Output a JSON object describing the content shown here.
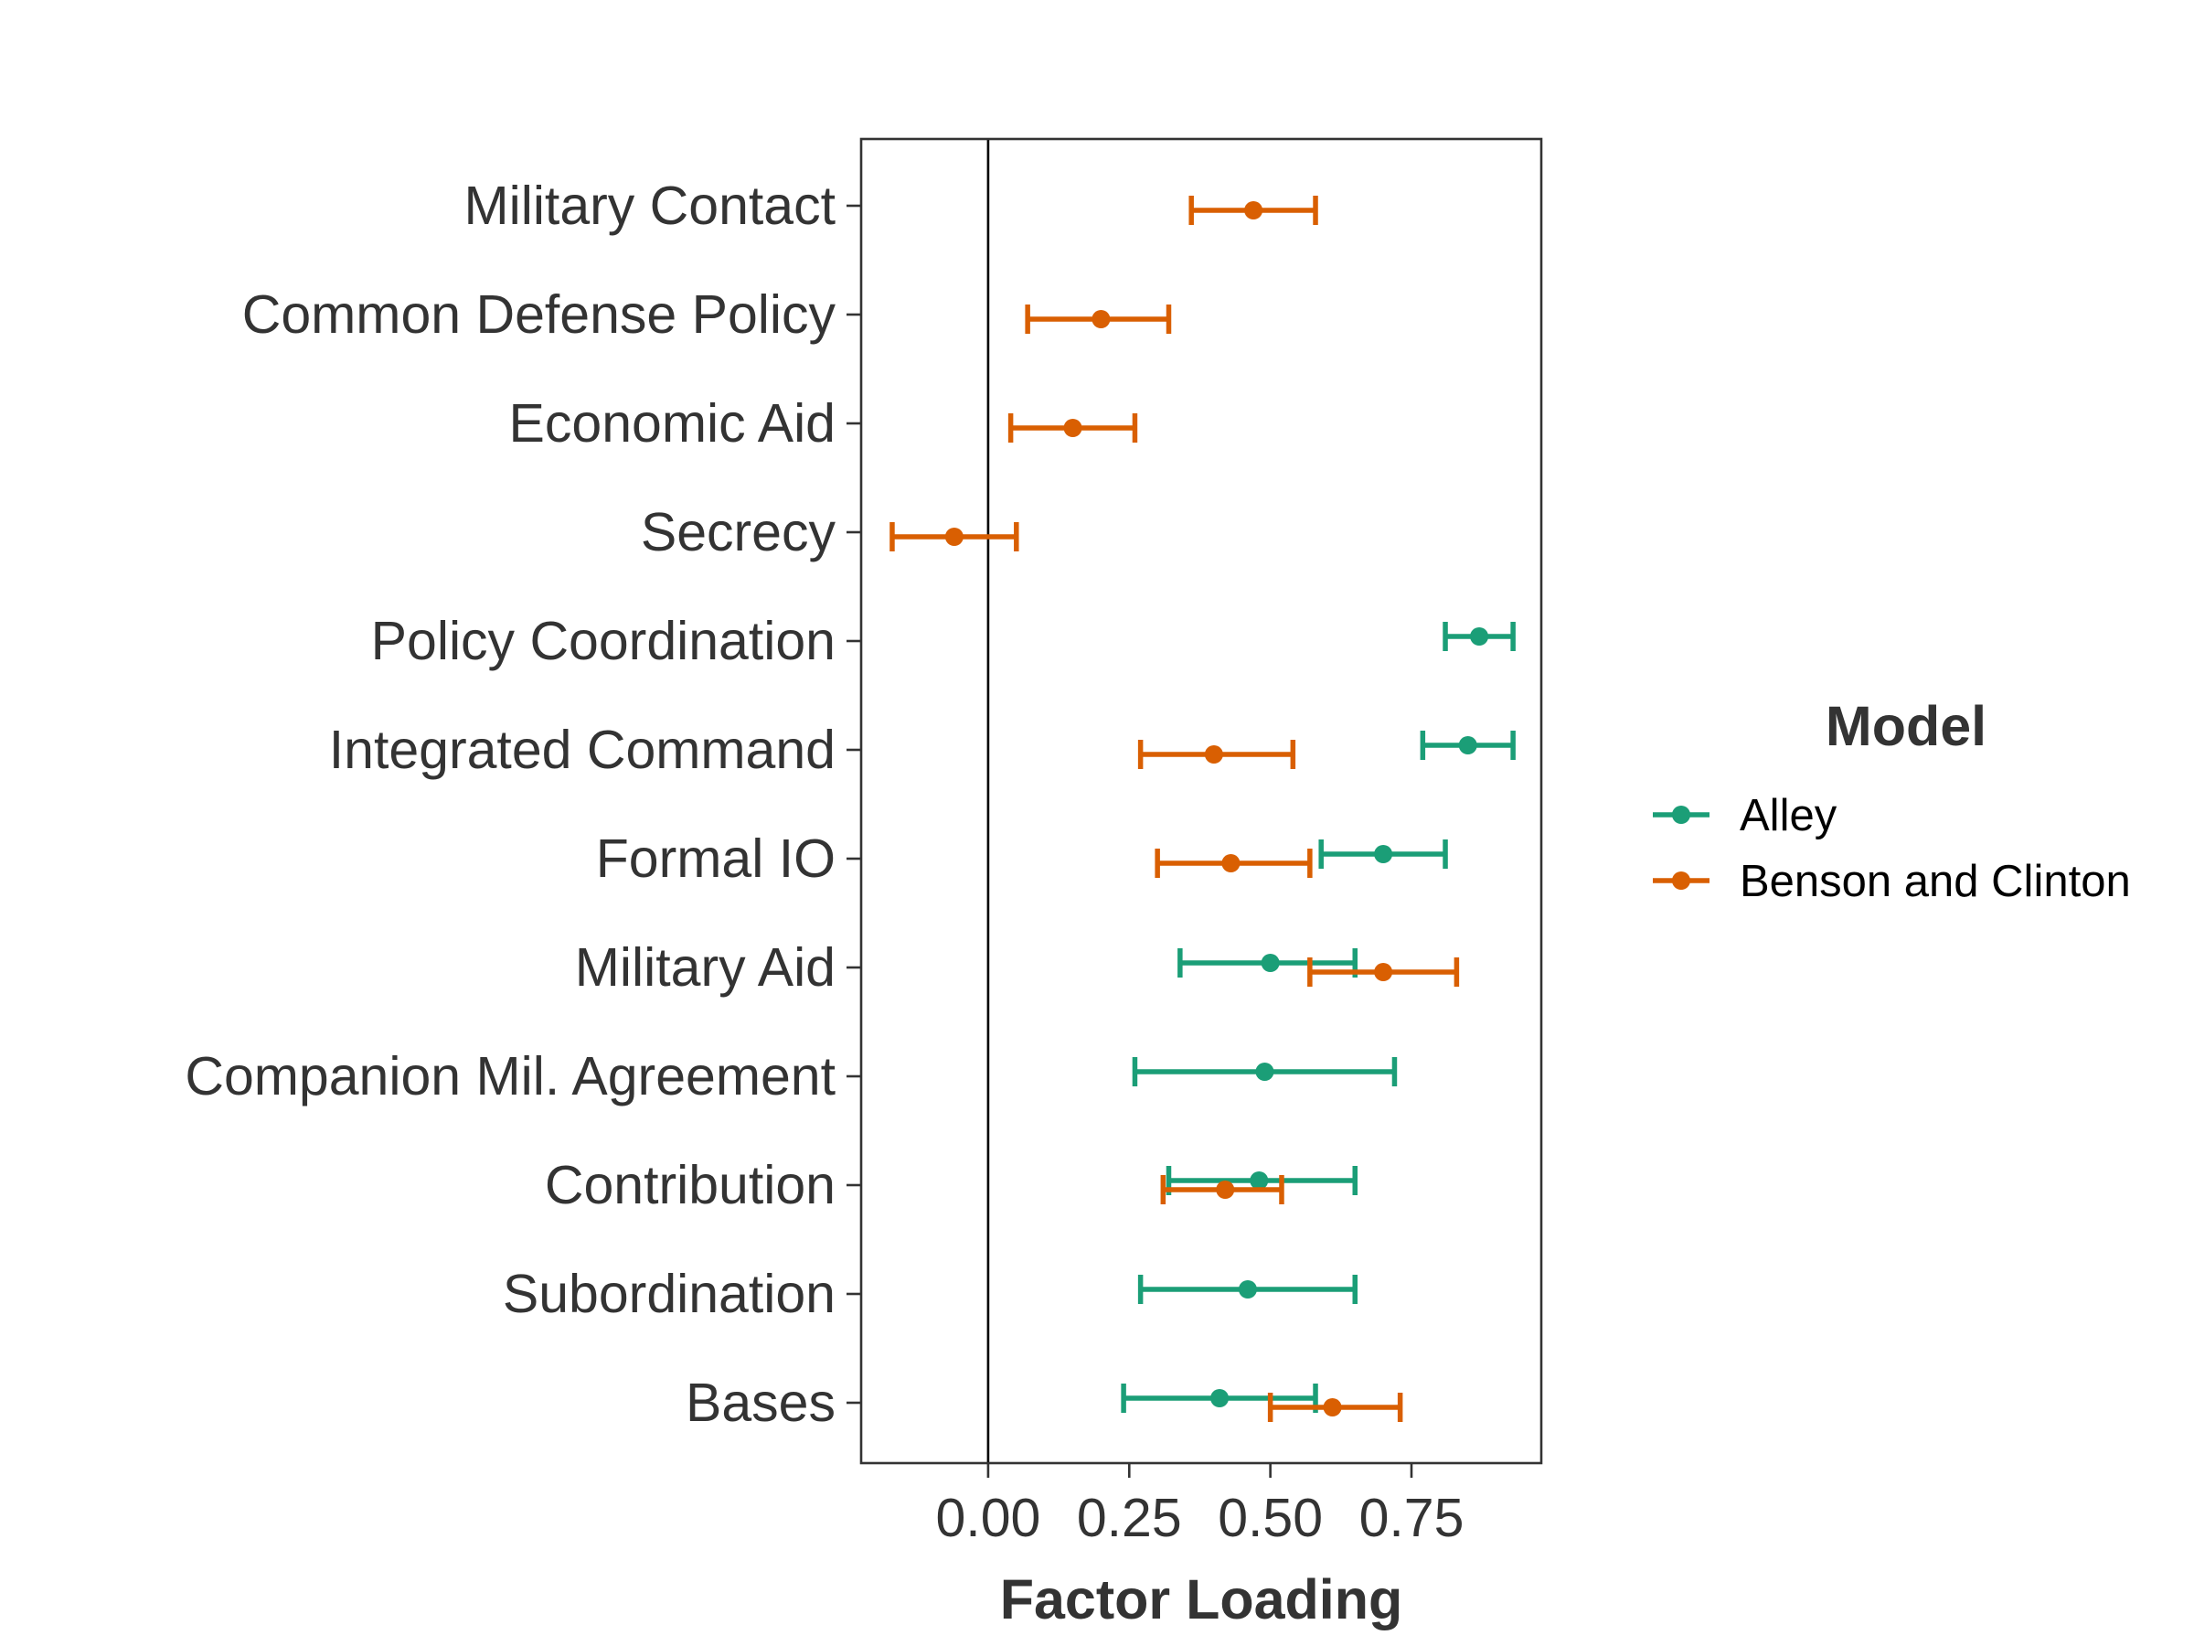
{
  "chart_data": {
    "type": "dot-errorbar",
    "xlabel": "Factor Loading",
    "ylabel": "",
    "xlim": [
      -0.225,
      0.98
    ],
    "x_ticks": [
      0.0,
      0.25,
      0.5,
      0.75
    ],
    "x_tick_labels": [
      "0.00",
      "0.25",
      "0.50",
      "0.75"
    ],
    "reference_line_x": 0,
    "grid": false,
    "legend": {
      "title": "Model",
      "position": "right"
    },
    "categories": [
      "Military Contact",
      "Common Defense Policy",
      "Economic Aid",
      "Secrecy",
      "Policy Coordination",
      "Integrated Command",
      "Formal IO",
      "Military Aid",
      "Companion Mil. Agreement",
      "Contribution",
      "Subordination",
      "Bases"
    ],
    "series": [
      {
        "name": "Alley",
        "color": "#1b9e77",
        "points": [
          {
            "category": "Policy Coordination",
            "estimate": 0.87,
            "lower": 0.81,
            "upper": 0.93
          },
          {
            "category": "Integrated Command",
            "estimate": 0.85,
            "lower": 0.77,
            "upper": 0.93
          },
          {
            "category": "Formal IO",
            "estimate": 0.7,
            "lower": 0.59,
            "upper": 0.81
          },
          {
            "category": "Military Aid",
            "estimate": 0.5,
            "lower": 0.34,
            "upper": 0.65
          },
          {
            "category": "Companion Mil. Agreement",
            "estimate": 0.49,
            "lower": 0.26,
            "upper": 0.72
          },
          {
            "category": "Contribution",
            "estimate": 0.48,
            "lower": 0.32,
            "upper": 0.65
          },
          {
            "category": "Subordination",
            "estimate": 0.46,
            "lower": 0.27,
            "upper": 0.65
          },
          {
            "category": "Bases",
            "estimate": 0.41,
            "lower": 0.24,
            "upper": 0.58
          }
        ]
      },
      {
        "name": "Benson and Clinton",
        "color": "#d95f02",
        "points": [
          {
            "category": "Military Contact",
            "estimate": 0.47,
            "lower": 0.36,
            "upper": 0.58
          },
          {
            "category": "Common Defense Policy",
            "estimate": 0.2,
            "lower": 0.07,
            "upper": 0.32
          },
          {
            "category": "Economic Aid",
            "estimate": 0.15,
            "lower": 0.04,
            "upper": 0.26
          },
          {
            "category": "Secrecy",
            "estimate": -0.06,
            "lower": -0.17,
            "upper": 0.05
          },
          {
            "category": "Integrated Command",
            "estimate": 0.4,
            "lower": 0.27,
            "upper": 0.54
          },
          {
            "category": "Formal IO",
            "estimate": 0.43,
            "lower": 0.3,
            "upper": 0.57
          },
          {
            "category": "Military Aid",
            "estimate": 0.7,
            "lower": 0.57,
            "upper": 0.83
          },
          {
            "category": "Contribution",
            "estimate": 0.42,
            "lower": 0.31,
            "upper": 0.52
          },
          {
            "category": "Bases",
            "estimate": 0.61,
            "lower": 0.5,
            "upper": 0.73
          }
        ]
      }
    ]
  }
}
